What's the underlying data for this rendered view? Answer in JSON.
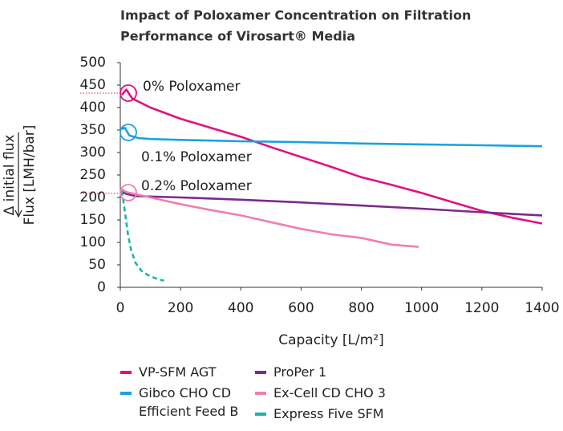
{
  "chart_data": {
    "type": "line",
    "title": [
      "Impact of Poloxamer Concentration on Filtration",
      "Performance of Virosart® Media"
    ],
    "xlabel": "Capacity [L/m²]",
    "ylabel": "Flux [LMH/bar]",
    "ylabel2": "Δ initial flux",
    "annotations": [
      "0% Poloxamer",
      "0.1% Poloxamer",
      "0.2% Poloxamer"
    ],
    "xlim": [
      0,
      1400
    ],
    "xticks": [
      0,
      200,
      400,
      600,
      800,
      1000,
      1200,
      1400
    ],
    "ylim": [
      0,
      500
    ],
    "yticks": [
      0,
      50,
      100,
      150,
      200,
      250,
      300,
      350,
      400,
      450,
      500
    ],
    "series": [
      {
        "name": "VP-SFM AGT",
        "color": "#e0117f",
        "dashed": false,
        "x": [
          5,
          20,
          40,
          100,
          200,
          300,
          400,
          500,
          600,
          700,
          800,
          900,
          1000,
          1100,
          1200,
          1300,
          1400
        ],
        "values": [
          428,
          440,
          420,
          400,
          375,
          355,
          335,
          312,
          290,
          268,
          245,
          228,
          210,
          190,
          170,
          155,
          142
        ]
      },
      {
        "name": "Gibco CHO CD Efficient Feed B",
        "color": "#1aa3de",
        "dashed": false,
        "x": [
          5,
          15,
          30,
          60,
          100,
          200,
          400,
          600,
          800,
          1000,
          1200,
          1400
        ],
        "values": [
          352,
          355,
          338,
          332,
          330,
          328,
          325,
          323,
          320,
          318,
          316,
          314
        ]
      },
      {
        "name": "ProPer 1",
        "color": "#7b2a8c",
        "dashed": false,
        "x": [
          5,
          20,
          50,
          200,
          400,
          600,
          800,
          1000,
          1200,
          1400
        ],
        "values": [
          212,
          208,
          203,
          200,
          195,
          189,
          182,
          175,
          167,
          160
        ]
      },
      {
        "name": "Ex-Cell CD CHO 3",
        "color": "#ee7fb2",
        "dashed": false,
        "x": [
          5,
          20,
          100,
          200,
          300,
          400,
          500,
          600,
          700,
          800,
          900,
          990
        ],
        "values": [
          218,
          212,
          200,
          185,
          172,
          160,
          145,
          130,
          118,
          110,
          95,
          90
        ]
      },
      {
        "name": "Express Five SFM",
        "color": "#1fb3a6",
        "dashed": true,
        "x": [
          5,
          15,
          25,
          35,
          50,
          70,
          90,
          110,
          130,
          145
        ],
        "values": [
          215,
          170,
          120,
          85,
          55,
          37,
          28,
          22,
          17,
          15
        ]
      }
    ]
  }
}
